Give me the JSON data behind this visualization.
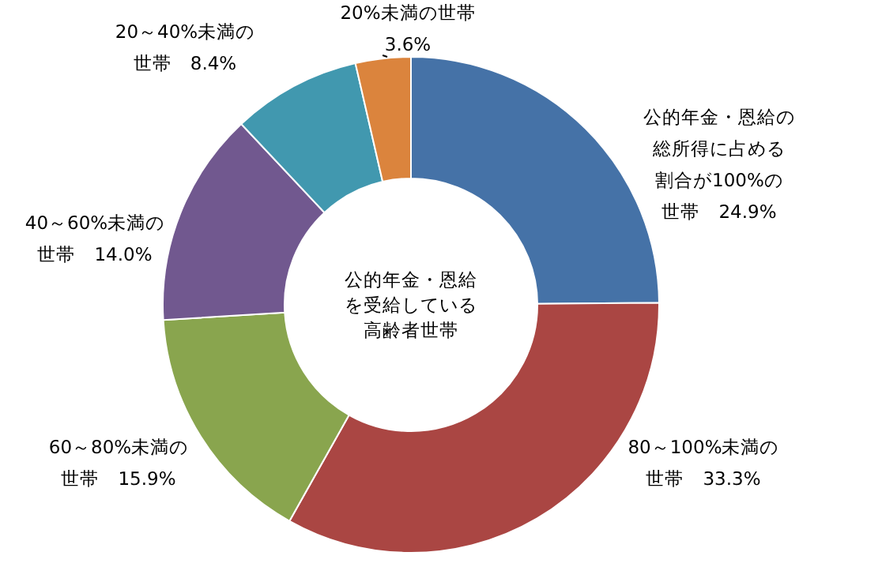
{
  "chart_data": {
    "type": "donut",
    "title": "公的年金・恩給を受給している高齢者世帯",
    "categories": [
      "公的年金・恩給の総所得に占める割合が100%の世帯",
      "80～100%未満の世帯",
      "60～80%未満の世帯",
      "40～60%未満の世帯",
      "20～40%未満の世帯",
      "20%未満の世帯"
    ],
    "values": [
      24.9,
      33.3,
      15.9,
      14.0,
      8.4,
      3.6
    ],
    "value_labels": [
      "24.9%",
      "33.3%",
      "15.9%",
      "14.0%",
      "8.4%",
      "3.6%"
    ],
    "colors": [
      "#4572a7",
      "#aa4643",
      "#89a54e",
      "#71588f",
      "#4198af",
      "#db843d"
    ]
  }
}
